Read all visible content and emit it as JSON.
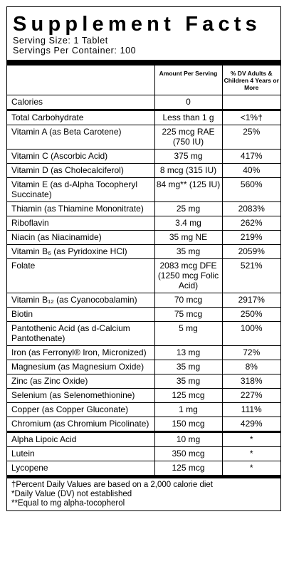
{
  "title": "Supplement Facts",
  "serving_size": "Serving Size: 1 Tablet",
  "servings_per_container": "Servings Per Container: 100",
  "header": {
    "amount": "Amount Per Serving",
    "dv": "% DV Adults & Children 4 Years or More"
  },
  "sections": [
    [
      {
        "name": "Calories",
        "amount": "0",
        "dv": null
      }
    ],
    [
      {
        "name": "Total Carbohydrate",
        "amount": "Less than 1 g",
        "dv": "<1%†"
      },
      {
        "name": "Vitamin A (as Beta Carotene)",
        "amount": "225 mcg RAE (750 IU)",
        "dv": "25%"
      },
      {
        "name": "Vitamin C (Ascorbic Acid)",
        "amount": "375 mg",
        "dv": "417%"
      },
      {
        "name": "Vitamin D (as Cholecalciferol)",
        "amount": "8 mcg (315 IU)",
        "dv": "40%"
      },
      {
        "name": "Vitamin E (as d-Alpha Tocopheryl Succinate)",
        "amount": "84 mg** (125 IU)",
        "dv": "560%"
      },
      {
        "name": "Thiamin (as Thiamine Mononitrate)",
        "amount": "25 mg",
        "dv": "2083%"
      },
      {
        "name": "Riboflavin",
        "amount": "3.4 mg",
        "dv": "262%"
      },
      {
        "name": "Niacin (as Niacinamide)",
        "amount": "35 mg NE",
        "dv": "219%"
      },
      {
        "name": "Vitamin B₆ (as Pyridoxine HCl)",
        "amount": "35 mg",
        "dv": "2059%"
      },
      {
        "name": "Folate",
        "amount": "2083 mcg DFE (1250 mcg Folic Acid)",
        "dv": "521%"
      },
      {
        "name": "Vitamin B₁₂ (as Cyanocobalamin)",
        "amount": "70 mcg",
        "dv": "2917%"
      },
      {
        "name": "Biotin",
        "amount": "75 mcg",
        "dv": "250%"
      },
      {
        "name": "Pantothenic Acid (as d-Calcium Pantothenate)",
        "amount": "5 mg",
        "dv": "100%"
      },
      {
        "name": "Iron (as Ferronyl® Iron, Micronized)",
        "amount": "13 mg",
        "dv": "72%"
      },
      {
        "name": "Magnesium (as Magnesium Oxide)",
        "amount": "35 mg",
        "dv": "8%"
      },
      {
        "name": "Zinc (as Zinc Oxide)",
        "amount": "35 mg",
        "dv": "318%"
      },
      {
        "name": "Selenium (as Selenomethionine)",
        "amount": "125 mcg",
        "dv": "227%"
      },
      {
        "name": "Copper (as Copper Gluconate)",
        "amount": "1 mg",
        "dv": "111%"
      },
      {
        "name": "Chromium (as Chromium Picolinate)",
        "amount": "150 mcg",
        "dv": "429%"
      }
    ],
    [
      {
        "name": "Alpha Lipoic Acid",
        "amount": "10 mg",
        "dv": "*"
      },
      {
        "name": "Lutein",
        "amount": "350 mcg",
        "dv": "*"
      },
      {
        "name": "Lycopene",
        "amount": "125 mcg",
        "dv": "*"
      }
    ]
  ],
  "footnotes": [
    "†Percent Daily Values are based on a 2,000 calorie diet",
    "*Daily Value (DV) not established",
    "**Equal to mg alpha-tocopherol"
  ]
}
